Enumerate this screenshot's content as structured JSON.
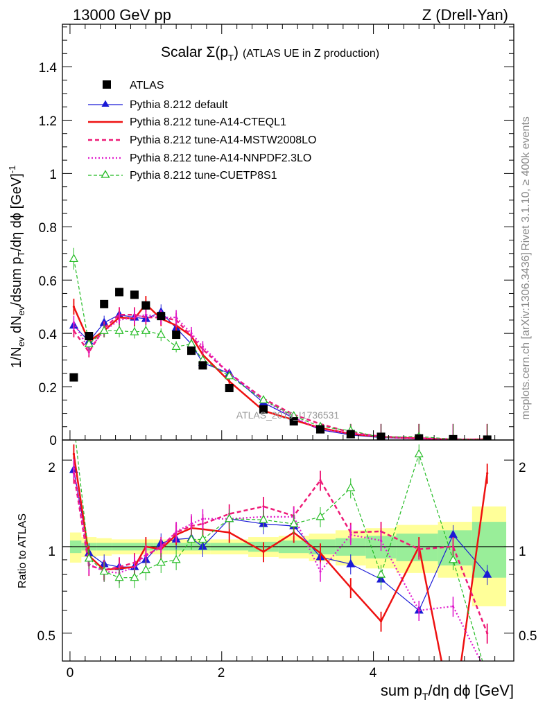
{
  "header": {
    "left": "13000 GeV pp",
    "right": "Z (Drell-Yan)"
  },
  "side_labels": {
    "top": "Rivet 3.1.10, ≥ 400k events",
    "bottom": "mcplots.cern.ch [arXiv:1306.3436]"
  },
  "colors": {
    "atlas": "#000000",
    "default": "#1a1ad6",
    "cteql1": "#ee1111",
    "mstw": "#ee1a77",
    "nnpdf": "#e01acc",
    "cuetp8s1": "#22bb22",
    "band_yellow": "#ffff99",
    "band_green": "#99ee99"
  },
  "chart_data": {
    "type": "line",
    "title": "Scalar Σ(p_T) (ATLAS UE in Z production)",
    "watermark": "ATLAS_2019_I1736531",
    "xlabel": "sum p_T/dη dϕ [GeV]",
    "ylabel_main": "1/N_ev dN_ev/dsum p_T/dη dϕ [GeV]^-1",
    "ylabel_ratio": "Ratio to ATLAS",
    "xlim": [
      -0.1,
      5.85
    ],
    "ylim_main": [
      0,
      1.56
    ],
    "ylim_ratio": [
      0.4,
      2.35
    ],
    "x_ticks": [
      "0",
      "2",
      "4"
    ],
    "y_ticks_main": [
      "0",
      "0.2",
      "0.4",
      "0.6",
      "0.8",
      "1",
      "1.2",
      "1.4"
    ],
    "y_ticks_ratio": [
      "0.5",
      "1",
      "2"
    ],
    "x": [
      0.05,
      0.25,
      0.45,
      0.65,
      0.85,
      1.0,
      1.2,
      1.4,
      1.6,
      1.75,
      2.1,
      2.55,
      2.95,
      3.3,
      3.7,
      4.1,
      4.6,
      5.05,
      5.5
    ],
    "series": [
      {
        "name": "ATLAS",
        "key": "atlas",
        "style": "marker",
        "values": [
          0.235,
          0.39,
          0.51,
          0.555,
          0.545,
          0.505,
          0.465,
          0.395,
          0.335,
          0.28,
          0.195,
          0.115,
          0.07,
          0.04,
          0.022,
          0.012,
          0.006,
          0.003,
          0.0015
        ]
      },
      {
        "name": "Pythia 8.212 default",
        "key": "default",
        "style": "solid-triangle",
        "values": [
          0.43,
          0.37,
          0.44,
          0.47,
          0.46,
          0.455,
          0.48,
          0.42,
          0.36,
          0.29,
          0.25,
          0.14,
          0.082,
          0.038,
          0.019,
          0.009,
          0.004,
          0.0033,
          0.0012
        ],
        "ratio": [
          1.85,
          0.95,
          0.87,
          0.85,
          0.85,
          0.9,
          1.03,
          1.06,
          1.07,
          1.0,
          1.25,
          1.2,
          1.18,
          0.92,
          0.87,
          0.77,
          0.6,
          1.1,
          0.8
        ]
      },
      {
        "name": "Pythia 8.212 tune-A14-CTEQL1",
        "key": "cteql1",
        "style": "solid",
        "values": [
          0.5,
          0.37,
          0.41,
          0.46,
          0.455,
          0.51,
          0.455,
          0.43,
          0.39,
          0.32,
          0.22,
          0.11,
          0.075,
          0.045,
          0.023,
          0.012,
          0.006,
          0.0015,
          0.0025
        ],
        "ratio": [
          2.1,
          0.93,
          0.83,
          0.84,
          0.85,
          1.0,
          0.98,
          1.1,
          1.16,
          1.15,
          1.12,
          0.96,
          1.12,
          0.95,
          0.72,
          0.55,
          1.0,
          0.25,
          1.8
        ]
      },
      {
        "name": "Pythia 8.212 tune-A14-MSTW2008LO",
        "key": "mstw",
        "style": "dashed",
        "values": [
          0.41,
          0.33,
          0.42,
          0.47,
          0.47,
          0.46,
          0.46,
          0.45,
          0.39,
          0.34,
          0.25,
          0.155,
          0.095,
          0.06,
          0.028,
          0.013,
          0.007,
          0.003,
          0.0012
        ],
        "ratio": [
          1.8,
          0.86,
          0.83,
          0.85,
          0.88,
          0.93,
          1.0,
          1.12,
          1.18,
          1.2,
          1.3,
          1.38,
          1.28,
          1.7,
          1.12,
          1.13,
          0.98,
          1.0,
          0.5
        ]
      },
      {
        "name": "Pythia 8.212 tune-A14-NNPDF2.3LO",
        "key": "nnpdf",
        "style": "dotted",
        "values": [
          0.44,
          0.34,
          0.41,
          0.45,
          0.46,
          0.47,
          0.46,
          0.46,
          0.4,
          0.35,
          0.25,
          0.15,
          0.085,
          0.04,
          0.025,
          0.012,
          0.004,
          0.003,
          0.0008
        ],
        "ratio": [
          1.87,
          0.87,
          0.82,
          0.81,
          0.85,
          0.94,
          0.99,
          1.13,
          1.2,
          1.25,
          1.25,
          1.27,
          1.27,
          0.82,
          1.1,
          1.05,
          0.6,
          0.62,
          0.36
        ]
      },
      {
        "name": "Pythia 8.212 tune-CUETP8S1",
        "key": "cuetp8s1",
        "style": "dashed-open-triangle",
        "values": [
          0.68,
          0.36,
          0.41,
          0.41,
          0.405,
          0.41,
          0.395,
          0.35,
          0.36,
          0.3,
          0.24,
          0.15,
          0.09,
          0.05,
          0.035,
          0.01,
          0.013,
          0.003,
          0.0006
        ],
        "ratio": [
          2.7,
          0.91,
          0.82,
          0.78,
          0.78,
          0.83,
          0.88,
          0.9,
          1.06,
          1.06,
          1.25,
          1.24,
          1.2,
          1.27,
          1.6,
          0.8,
          2.1,
          0.9,
          0.35
        ]
      }
    ],
    "ratio_band_edges": [
      0.0,
      0.15,
      0.35,
      0.55,
      0.75,
      0.95,
      1.1,
      1.3,
      1.5,
      1.7,
      1.85,
      2.35,
      2.75,
      3.15,
      3.5,
      3.9,
      4.3,
      4.85,
      5.3,
      5.75
    ],
    "ratio_band_yellow_halfwidth": [
      0.12,
      0.08,
      0.07,
      0.06,
      0.06,
      0.06,
      0.06,
      0.06,
      0.06,
      0.06,
      0.06,
      0.08,
      0.09,
      0.11,
      0.14,
      0.16,
      0.19,
      0.22,
      0.38
    ],
    "ratio_band_green_halfwidth": [
      0.05,
      0.03,
      0.03,
      0.03,
      0.03,
      0.03,
      0.03,
      0.03,
      0.03,
      0.03,
      0.03,
      0.04,
      0.05,
      0.06,
      0.07,
      0.09,
      0.11,
      0.14,
      0.22
    ]
  }
}
